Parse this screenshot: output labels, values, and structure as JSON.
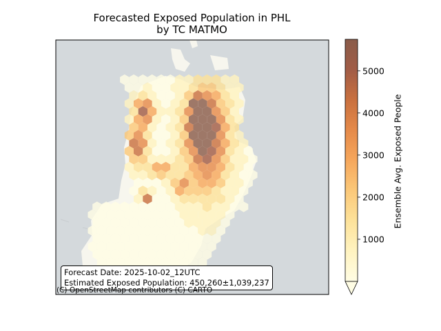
{
  "title_line1": "Forecasted Exposed Population in PHL",
  "title_line2": "by TC MATMO",
  "info": {
    "forecast_date": "Forecast Date: 2025-10-02_12UTC",
    "estimated": "Estimated Exposed Population: 450,260±1,039,237"
  },
  "attribution": "(C) OpenStreetMap contributors (C) CARTO",
  "colors": {
    "background": "#d4d9dc",
    "land": "#f7f7ef",
    "cmap": [
      "#fffde4",
      "#fff3c0",
      "#fde29a",
      "#fbc879",
      "#f6a75c",
      "#e58a4a",
      "#c9703f",
      "#a15c46",
      "#8a5c4a"
    ]
  },
  "chart_data": {
    "type": "heatmap",
    "title": "Forecasted Exposed Population in PHL\nby TC MATMO",
    "colorbar": {
      "label": "Ensemble Avg. Exposed People",
      "ticks": [
        1000,
        2000,
        3000,
        4000,
        5000
      ],
      "range": [
        0,
        5750
      ],
      "extend": "min"
    },
    "grid": false
  }
}
